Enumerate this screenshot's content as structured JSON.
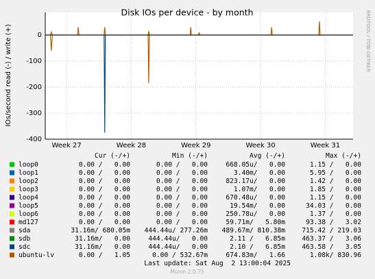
{
  "chart_data": {
    "type": "line",
    "title": "Disk IOs per device - by month",
    "y_label": "IOs/second read (-) / write (+)",
    "side_label": "RRDTOOL / TOBI OETIKER",
    "x": [
      26.67,
      26.75,
      26.765,
      26.78,
      27.17,
      27.18,
      27.19,
      27.58,
      27.59,
      27.6,
      28.26,
      28.27,
      28.28,
      28.91,
      28.92,
      28.93,
      29.04,
      29.05,
      29.06,
      30.16,
      30.17,
      30.18,
      30.9,
      30.91,
      30.92,
      31.43
    ],
    "xlim": [
      26.67,
      31.43
    ],
    "xticks": [
      {
        "value": 27,
        "label": "Week 27"
      },
      {
        "value": 28,
        "label": "Week 28"
      },
      {
        "value": 29,
        "label": "Week 29"
      },
      {
        "value": 30,
        "label": "Week 30"
      },
      {
        "value": 31,
        "label": "Week 31"
      }
    ],
    "ylim": [
      -400,
      87
    ],
    "yticks": [
      -400,
      -300,
      -200,
      -100,
      0
    ],
    "grid": true,
    "columns": [
      "Cur (-/+)",
      "Min (-/+)",
      "Avg (-/+)",
      "Max (-/+)"
    ],
    "series": [
      {
        "name": "loop0",
        "color": "#00cc00",
        "cur": "0.00 /   0.00",
        "min": "0.00 /   0.00",
        "avg": "668.05u/   0.00",
        "max": "1.15 /   0.00"
      },
      {
        "name": "loop1",
        "color": "#0066b3",
        "cur": "0.00 /   0.00",
        "min": "0.00 /   0.00",
        "avg": "3.40m/   0.00",
        "max": "5.95 /   0.00"
      },
      {
        "name": "loop2",
        "color": "#ff8000",
        "cur": "0.00 /   0.00",
        "min": "0.00 /   0.00",
        "avg": "823.17u/   0.00",
        "max": "1.42 /   0.00"
      },
      {
        "name": "loop3",
        "color": "#ffcc00",
        "cur": "0.00 /   0.00",
        "min": "0.00 /   0.00",
        "avg": "1.07m/   0.00",
        "max": "1.85 /   0.00"
      },
      {
        "name": "loop4",
        "color": "#330099",
        "cur": "0.00 /   0.00",
        "min": "0.00 /   0.00",
        "avg": "670.48u/   0.00",
        "max": "1.15 /   0.00"
      },
      {
        "name": "loop5",
        "color": "#990099",
        "cur": "0.00 /   0.00",
        "min": "0.00 /   0.00",
        "avg": "19.54m/   0.00",
        "max": "34.03 /   0.00"
      },
      {
        "name": "loop6",
        "color": "#ccff00",
        "cur": "0.00 /   0.00",
        "min": "0.00 /   0.00",
        "avg": "250.78u/   0.00",
        "max": "1.37 /   0.00"
      },
      {
        "name": "md127",
        "color": "#ff0000",
        "cur": "0.00 /   0.00",
        "min": "0.00 /   0.00",
        "avg": "59.71m/   5.80m",
        "max": "93.38 /   3.02"
      },
      {
        "name": "sda",
        "color": "#808080",
        "cur": "31.16m/ 680.05m",
        "min": "444.44u/ 277.26m",
        "avg": "489.67m/ 810.38m",
        "max": "715.42 / 219.03"
      },
      {
        "name": "sdb",
        "color": "#008f00",
        "cur": "31.16m/   0.00",
        "min": "444.44u/   0.00",
        "avg": "2.11 /   6.85m",
        "max": "463.37 /   3.06"
      },
      {
        "name": "sdc",
        "color": "#00487d",
        "cur": "31.16m/   0.00",
        "min": "444.44u/   0.00",
        "avg": "2.10 /   6.85m",
        "max": "463.58 /   3.05",
        "read": [
          0,
          0,
          0,
          0,
          0,
          0,
          0,
          0,
          -375,
          0,
          0,
          0,
          0,
          0,
          0,
          0,
          0,
          0,
          0,
          0,
          0,
          0,
          0,
          0,
          0,
          0
        ]
      },
      {
        "name": "ubuntu-lv",
        "color": "#b35a00",
        "cur": "0.00 /   1.05",
        "min": "0.00 / 532.67m",
        "avg": "674.83m/   1.66",
        "max": "1.08k/ 830.96",
        "read": [
          0,
          0,
          -60,
          0,
          0,
          0,
          0,
          0,
          0,
          0,
          0,
          -185,
          0,
          0,
          0,
          0,
          0,
          0,
          0,
          0,
          0,
          0,
          0,
          0,
          0,
          0
        ],
        "values": [
          0,
          0,
          12,
          0,
          0,
          30,
          0,
          0,
          30,
          0,
          0,
          15,
          0,
          0,
          30,
          0,
          0,
          10,
          0,
          0,
          30,
          0,
          0,
          52,
          0,
          0
        ]
      }
    ],
    "last_update": "Last update: Sat Aug  2 13:00:04 2025",
    "footer": "Munin 2.0.75"
  }
}
